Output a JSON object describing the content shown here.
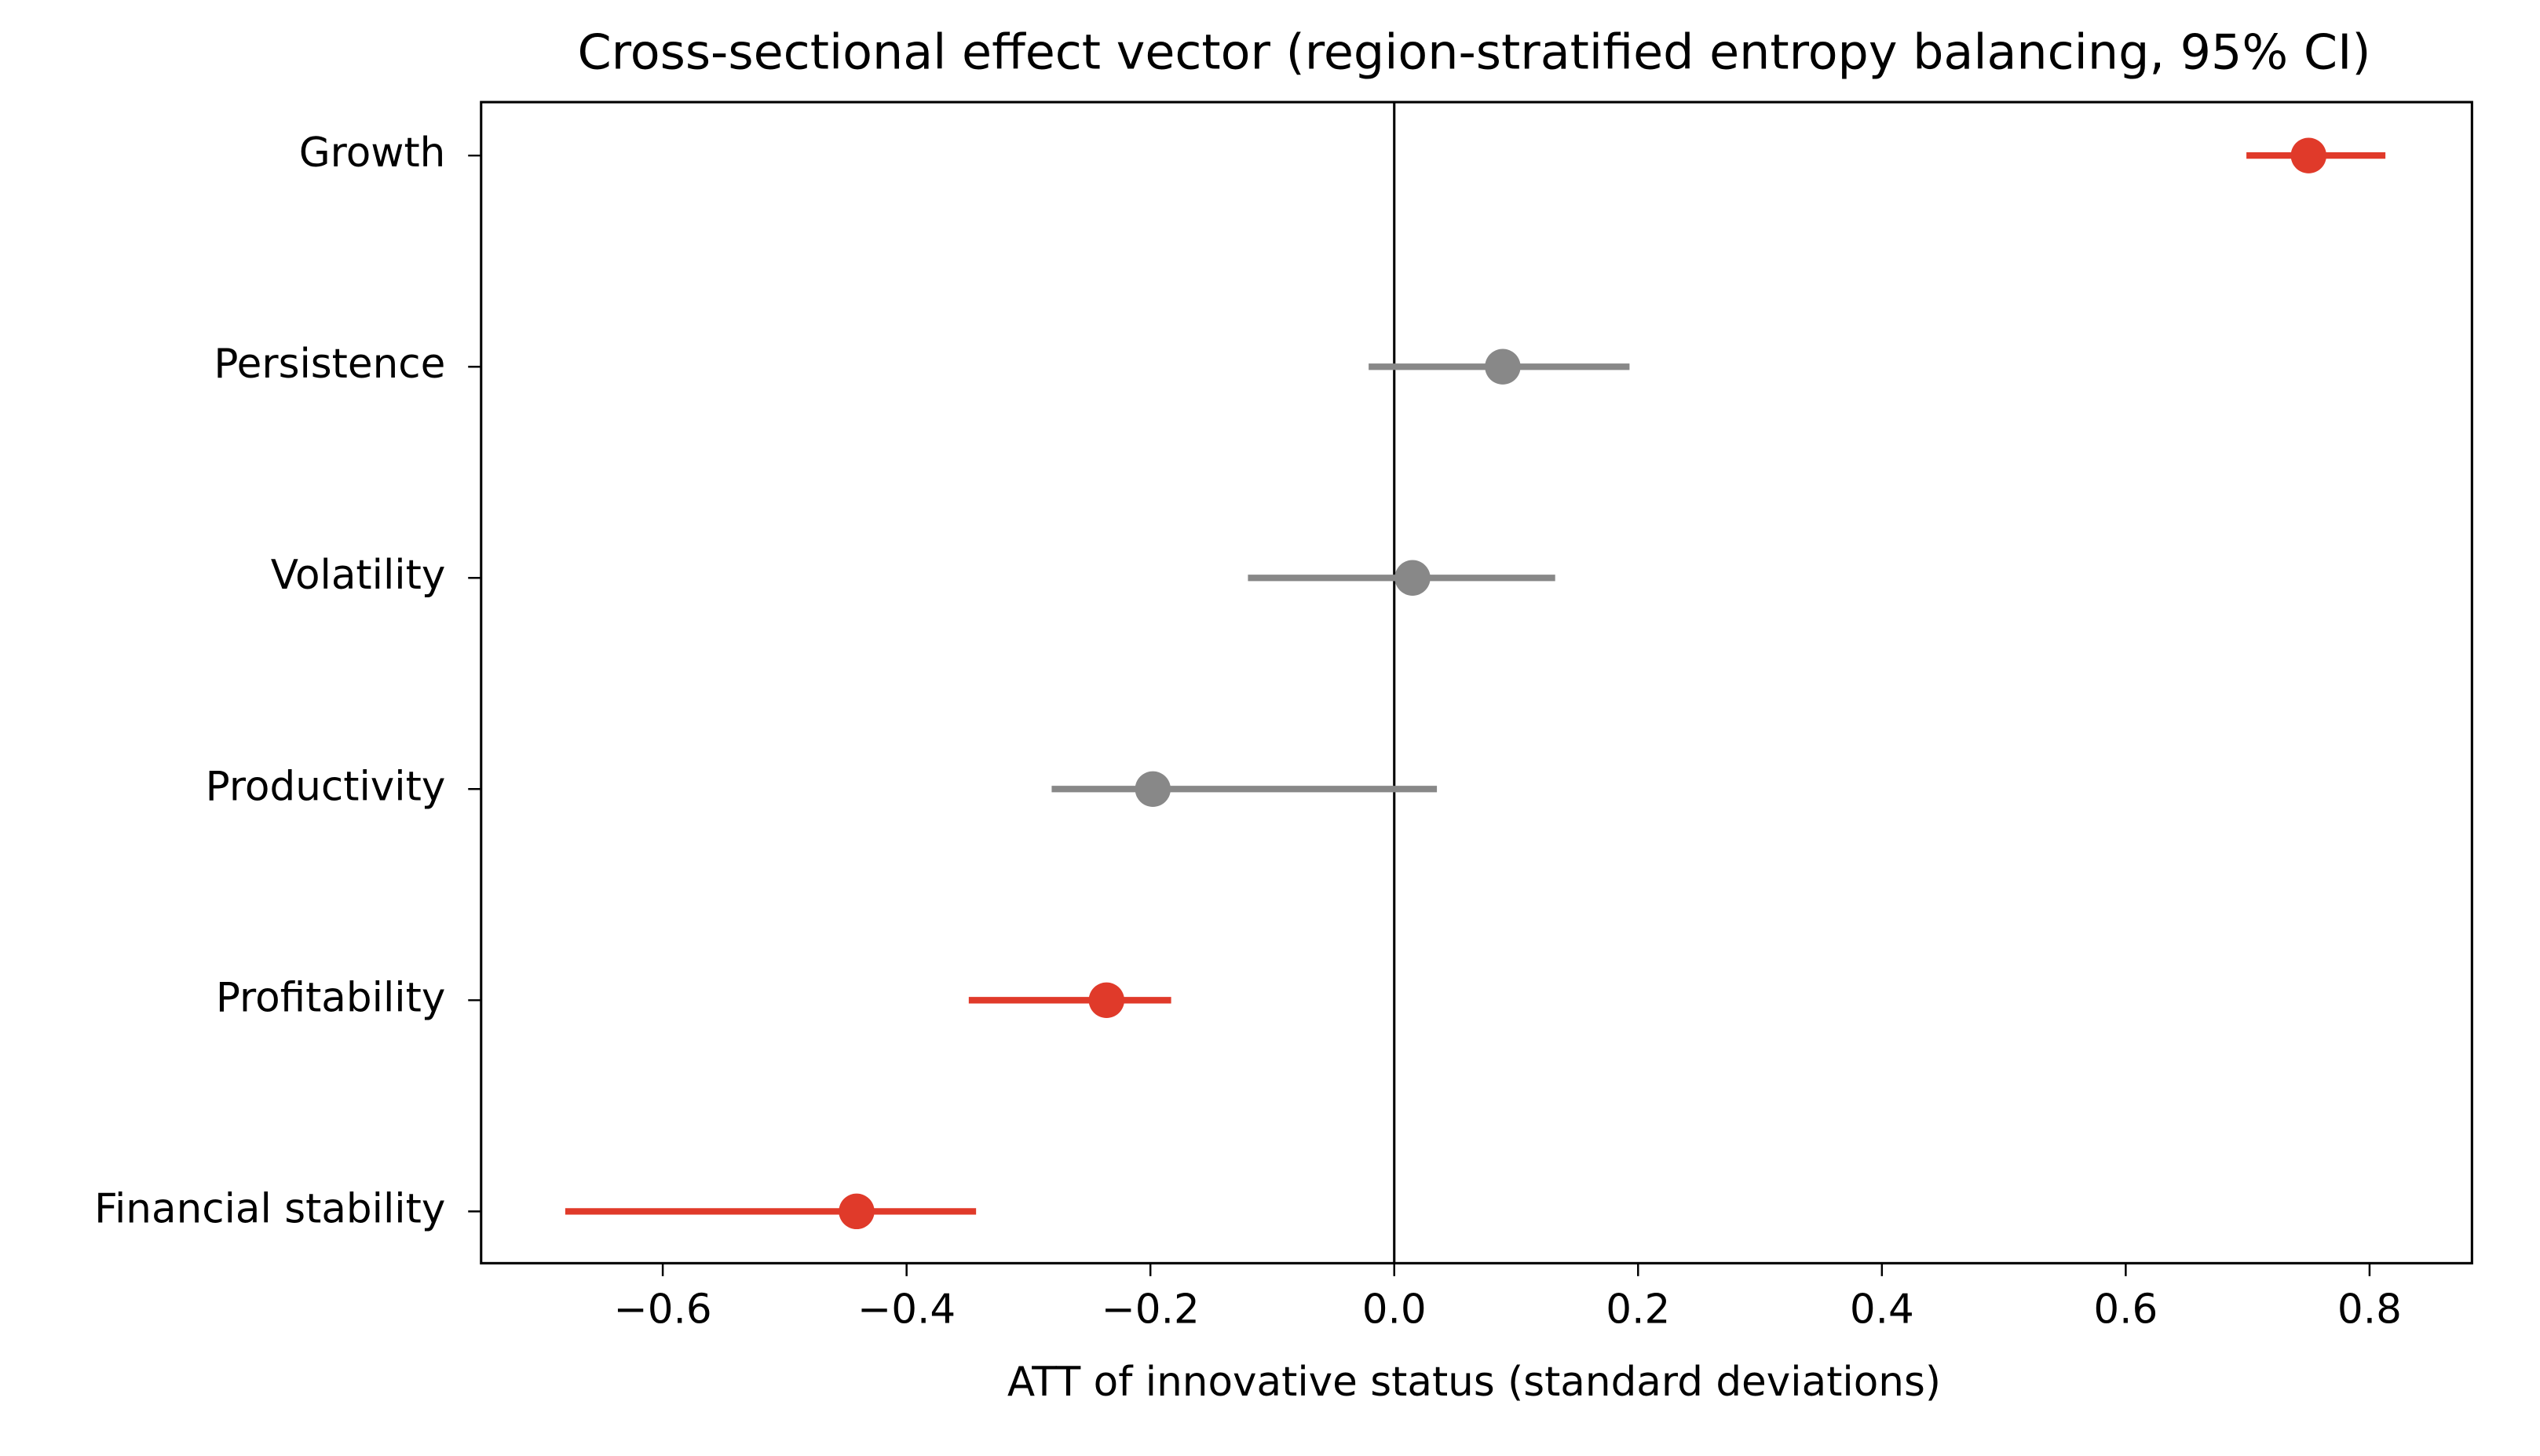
{
  "chart_data": {
    "type": "errorbar",
    "title": "Cross-sectional effect vector (region-stratified entropy balancing, 95% CI)",
    "xlabel": "ATT of innovative status (standard deviations)",
    "categories": [
      "Growth",
      "Persistence",
      "Volatility",
      "Productivity",
      "Profitability",
      "Financial stability"
    ],
    "values": [
      0.75,
      0.089,
      0.015,
      -0.198,
      -0.236,
      -0.441
    ],
    "ci_low": [
      0.699,
      -0.021,
      -0.12,
      -0.281,
      -0.349,
      -0.68
    ],
    "ci_high": [
      0.813,
      0.193,
      0.132,
      0.035,
      -0.183,
      -0.343
    ],
    "colors": [
      "#e03a2a",
      "#888888",
      "#888888",
      "#888888",
      "#e03a2a",
      "#e03a2a"
    ],
    "xlim": [
      -0.749,
      0.884
    ],
    "xticks": [
      {
        "value": -0.6,
        "label": "−0.6"
      },
      {
        "value": -0.4,
        "label": "−0.4"
      },
      {
        "value": -0.2,
        "label": "−0.2"
      },
      {
        "value": 0,
        "label": "0.0"
      },
      0.2,
      0.4,
      0.6,
      0.8
    ],
    "vline": 0,
    "grid": false
  }
}
